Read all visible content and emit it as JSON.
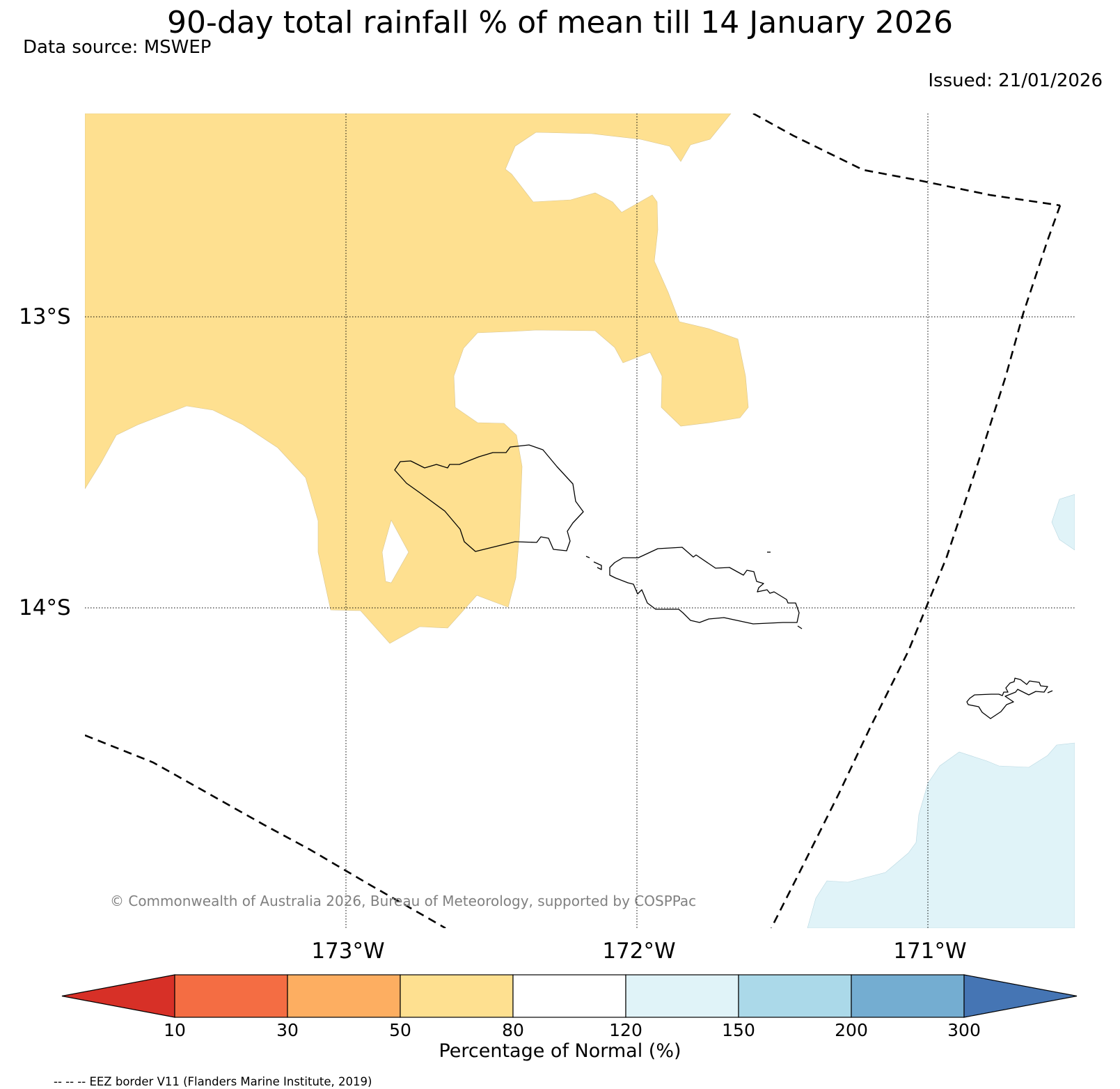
{
  "title": "90-day total rainfall % of mean till 14 January 2026",
  "data_source": "Data source: MSWEP",
  "issued": "Issued: 21/01/2026",
  "map": {
    "lat_labels": [
      "13°S",
      "14°S"
    ],
    "lon_labels": [
      "173°W",
      "172°W",
      "171°W"
    ],
    "copyright": "© Commonwealth of Australia 2026, Bureau of Meteorology, supported by COSPPac",
    "fill_colors": {
      "below_80": "#fee090",
      "above_120": "#e0f3f8",
      "normal": "#ffffff"
    }
  },
  "colorbar": {
    "label": "Percentage of Normal (%)",
    "ticks": [
      "10",
      "30",
      "50",
      "80",
      "120",
      "150",
      "200",
      "300"
    ],
    "colors": [
      "#d73027",
      "#f46d43",
      "#fdae61",
      "#fee090",
      "#ffffff",
      "#e0f3f8",
      "#abd9e9",
      "#74add1",
      "#4575b4"
    ]
  },
  "footnote": "-- -- -- EEZ border V11 (Flanders Marine Institute, 2019)"
}
